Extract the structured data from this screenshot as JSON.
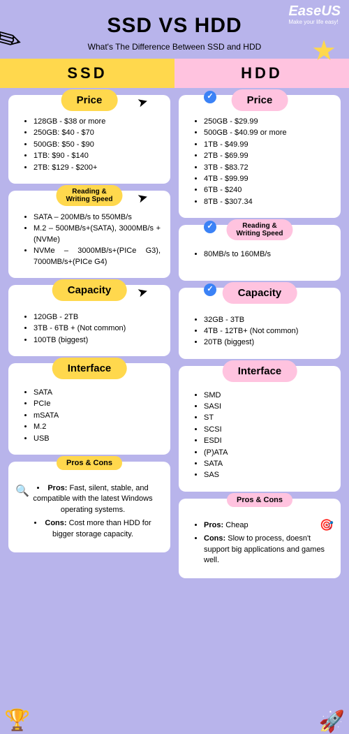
{
  "brand": {
    "name": "EaseUS",
    "tagline": "Make your life easy!"
  },
  "title": "SSD VS HDD",
  "subtitle": "What's The Difference Between SSD and HDD",
  "columns": {
    "ssd": "SSD",
    "hdd": "HDD"
  },
  "colors": {
    "page_bg": "#b8b4eb",
    "ssd_accent": "#ffd84d",
    "hdd_accent": "#ffc3df",
    "card_bg": "#ffffff",
    "check_bg": "#3b82f6"
  },
  "sections": {
    "price": {
      "label": "Price"
    },
    "speed": {
      "label": "Reading &\nWriting Speed"
    },
    "capacity": {
      "label": "Capacity"
    },
    "interface": {
      "label": "Interface"
    },
    "proscons": {
      "label": "Pros & Cons"
    }
  },
  "ssd": {
    "price": [
      "128GB - $38 or more",
      "250GB: $40 - $70",
      "500GB: $50 - $90",
      "1TB: $90 - $140",
      "2TB: $129 - $200+"
    ],
    "speed": [
      "SATA – 200MB/s to 550MB/s",
      "M.2 – 500MB/s+(SATA), 3000MB/s + (NVMe)",
      "NVMe – 3000MB/s+(PICe G3), 7000MB/s+(PICe G4)"
    ],
    "capacity": [
      "120GB - 2TB",
      "3TB - 6TB + (Not common)",
      "100TB (biggest)"
    ],
    "interface": [
      "SATA",
      "PCIe",
      "mSATA",
      "M.2",
      "USB"
    ],
    "pros": "Fast, silent, stable, and compatible with the latest Windows operating systems.",
    "cons": "Cost more than HDD for bigger storage capacity."
  },
  "hdd": {
    "price": [
      "250GB - $29.99",
      "500GB - $40.99 or more",
      "1TB - $49.99",
      "2TB - $69.99",
      "3TB - $83.72",
      "4TB - $99.99",
      "6TB - $240",
      "8TB - $307.34"
    ],
    "speed": [
      "80MB/s to 160MB/s"
    ],
    "capacity": [
      "32GB - 3TB",
      "4TB - 12TB+ (Not common)",
      "20TB (biggest)"
    ],
    "interface": [
      "SMD",
      "SASI",
      "ST",
      "SCSI",
      "ESDI",
      "(P)ATA",
      "SATA",
      "SAS"
    ],
    "pros": "Cheap",
    "cons": "Slow to process, doesn't support big applications and games well."
  },
  "labels": {
    "pros": "Pros:",
    "cons": "Cons:"
  }
}
